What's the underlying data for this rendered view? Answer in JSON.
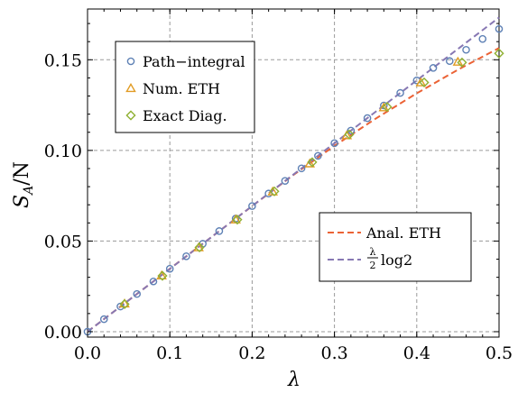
{
  "chart_data": {
    "type": "line",
    "xlabel": "λ",
    "ylabel": "S",
    "ylabel_sub": "A",
    "ylabel_tail": "/N",
    "xlim": [
      0,
      0.5
    ],
    "ylim": [
      -0.003,
      0.178
    ],
    "x_ticks": [
      0.0,
      0.1,
      0.2,
      0.3,
      0.4,
      0.5
    ],
    "x_tick_labels": [
      "0.0",
      "0.1",
      "0.2",
      "0.3",
      "0.4",
      "0.5"
    ],
    "y_ticks": [
      0.0,
      0.05,
      0.1,
      0.15
    ],
    "y_tick_labels": [
      "0.00",
      "0.05",
      "0.10",
      "0.15"
    ],
    "grid": true,
    "series": [
      {
        "name": "Path−integral",
        "kind": "marker",
        "marker": "circle",
        "color": "#5e81b5",
        "points": [
          [
            0.0,
            0.0
          ],
          [
            0.02,
            0.0069
          ],
          [
            0.04,
            0.0139
          ],
          [
            0.06,
            0.0208
          ],
          [
            0.08,
            0.0277
          ],
          [
            0.1,
            0.0347
          ],
          [
            0.12,
            0.0416
          ],
          [
            0.14,
            0.0485
          ],
          [
            0.16,
            0.0555
          ],
          [
            0.18,
            0.0624
          ],
          [
            0.2,
            0.0693
          ],
          [
            0.22,
            0.0762
          ],
          [
            0.24,
            0.0832
          ],
          [
            0.26,
            0.0901
          ],
          [
            0.28,
            0.097
          ],
          [
            0.3,
            0.104
          ],
          [
            0.32,
            0.1109
          ],
          [
            0.34,
            0.1178
          ],
          [
            0.36,
            0.1248
          ],
          [
            0.38,
            0.1317
          ],
          [
            0.4,
            0.1386
          ],
          [
            0.42,
            0.1455
          ],
          [
            0.44,
            0.1493
          ],
          [
            0.46,
            0.1555
          ],
          [
            0.48,
            0.1615
          ],
          [
            0.5,
            0.167
          ]
        ]
      },
      {
        "name": "Num. ETH",
        "kind": "marker",
        "marker": "triangle",
        "color": "#e19c24",
        "points": [
          [
            0.045,
            0.0154
          ],
          [
            0.09,
            0.0309
          ],
          [
            0.135,
            0.0464
          ],
          [
            0.18,
            0.0618
          ],
          [
            0.225,
            0.0772
          ],
          [
            0.27,
            0.0927
          ],
          [
            0.315,
            0.1082
          ],
          [
            0.36,
            0.1236
          ],
          [
            0.405,
            0.1374
          ],
          [
            0.45,
            0.1488
          ]
        ]
      },
      {
        "name": "Exact Diag.",
        "kind": "marker",
        "marker": "diamond",
        "color": "#8fb032",
        "points": [
          [
            0.045,
            0.0152
          ],
          [
            0.091,
            0.0308
          ],
          [
            0.136,
            0.0465
          ],
          [
            0.182,
            0.0618
          ],
          [
            0.227,
            0.0774
          ],
          [
            0.273,
            0.0935
          ],
          [
            0.318,
            0.1088
          ],
          [
            0.364,
            0.124
          ],
          [
            0.409,
            0.1375
          ],
          [
            0.455,
            0.1485
          ],
          [
            0.5,
            0.1535
          ]
        ]
      },
      {
        "name": "Anal. ETH",
        "kind": "line",
        "dashed": true,
        "color": "#eb6235",
        "points": [
          [
            0.0,
            0.0
          ],
          [
            0.1,
            0.0347
          ],
          [
            0.2,
            0.0693
          ],
          [
            0.25,
            0.0864
          ],
          [
            0.3,
            0.1025
          ],
          [
            0.35,
            0.1175
          ],
          [
            0.4,
            0.1315
          ],
          [
            0.45,
            0.1445
          ],
          [
            0.5,
            0.1565
          ]
        ]
      },
      {
        "name": "λ/2 log2",
        "kind": "line",
        "dashed": true,
        "color": "#8778b3",
        "points": [
          [
            0.0,
            0.0
          ],
          [
            0.5,
            0.1733
          ]
        ]
      }
    ],
    "legend_top": [
      {
        "label": "Path−integral",
        "marker": "circle",
        "color": "#5e81b5"
      },
      {
        "label": "Num. ETH",
        "marker": "triangle",
        "color": "#e19c24"
      },
      {
        "label": "Exact Diag.",
        "marker": "diamond",
        "color": "#8fb032"
      }
    ],
    "legend_bottom": [
      {
        "label": "Anal. ETH",
        "color": "#eb6235"
      },
      {
        "label_frac_num": "λ",
        "label_frac_den": "2",
        "label_tail": "log2",
        "color": "#8778b3"
      }
    ]
  }
}
